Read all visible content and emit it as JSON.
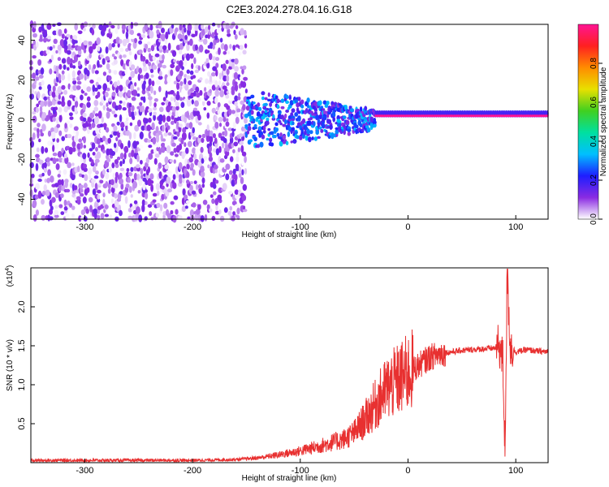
{
  "title": "C2E3.2024.278.04.16.G18",
  "chart_data": [
    {
      "type": "heatmap",
      "xlabel": "Height of straight line (km)",
      "ylabel": "Frequency (Hz)",
      "xlim": [
        -350,
        130
      ],
      "ylim": [
        -50,
        48
      ],
      "xticks": [
        -300,
        -200,
        -100,
        0,
        100
      ],
      "yticks": [
        -40,
        -20,
        0,
        20,
        40
      ],
      "colorbar": {
        "label": "Normalized spectral amplitude",
        "range": [
          0,
          1
        ],
        "ticks": [
          0.0,
          0.2,
          0.4,
          0.6,
          0.8
        ],
        "tick_labels": [
          "0.0",
          "0.2",
          "0.4",
          "0.6",
          "0.8"
        ],
        "colors": [
          "#ffffff",
          "#8a2be2",
          "#1e1eff",
          "#00bfff",
          "#00e0a0",
          "#40d020",
          "#e8e000",
          "#ff8c00",
          "#ff2020",
          "#ff1493"
        ]
      },
      "regions": [
        {
          "name": "noise",
          "x": [
            -350,
            -150
          ],
          "y": [
            -50,
            48
          ],
          "amplitude": [
            0.0,
            0.15
          ]
        },
        {
          "name": "transition",
          "x": [
            -150,
            -30
          ],
          "center_freq": 0,
          "spread": [
            15,
            5
          ],
          "amplitude": [
            0.1,
            0.35
          ]
        },
        {
          "name": "signal",
          "x": [
            -30,
            130
          ],
          "frequency": 2,
          "amplitude": 1.0
        }
      ]
    },
    {
      "type": "line",
      "xlabel": "Height of straight line (km)",
      "ylabel": "SNR (10 * v/v)",
      "y_multiplier_label": "(x10",
      "y_multiplier_exp": "4",
      "xlim": [
        -350,
        130
      ],
      "ylim": [
        0,
        2.5
      ],
      "xticks": [
        -300,
        -200,
        -100,
        0,
        100
      ],
      "yticks": [
        0.5,
        1.0,
        1.5,
        2.0
      ],
      "ytick_labels": [
        "0.5",
        "1.0",
        "1.5",
        "2.0"
      ],
      "color": "#e83030",
      "series": [
        {
          "x": [
            -350,
            -300,
            -250,
            -200,
            -160,
            -140,
            -120,
            -100,
            -80,
            -60,
            -50,
            -40,
            -30,
            -20,
            -10,
            0,
            10,
            20,
            30,
            40,
            50,
            60,
            70,
            80,
            85,
            88,
            90,
            92,
            95,
            100,
            110,
            120,
            130
          ],
          "y": [
            0.03,
            0.03,
            0.03,
            0.03,
            0.04,
            0.06,
            0.1,
            0.15,
            0.22,
            0.3,
            0.38,
            0.55,
            0.75,
            0.95,
            1.05,
            1.15,
            1.25,
            1.35,
            1.4,
            1.42,
            1.44,
            1.45,
            1.46,
            1.47,
            1.5,
            1.3,
            0.15,
            2.4,
            1.5,
            1.42,
            1.45,
            1.43,
            1.42
          ]
        }
      ]
    }
  ]
}
